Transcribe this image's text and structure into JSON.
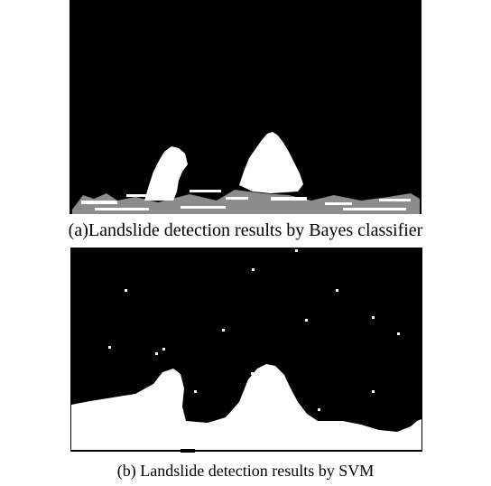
{
  "figure": {
    "captions": [
      "(a)Landslide detection results by Bayes classifier",
      "(b) Landslide detection results by SVM"
    ]
  }
}
